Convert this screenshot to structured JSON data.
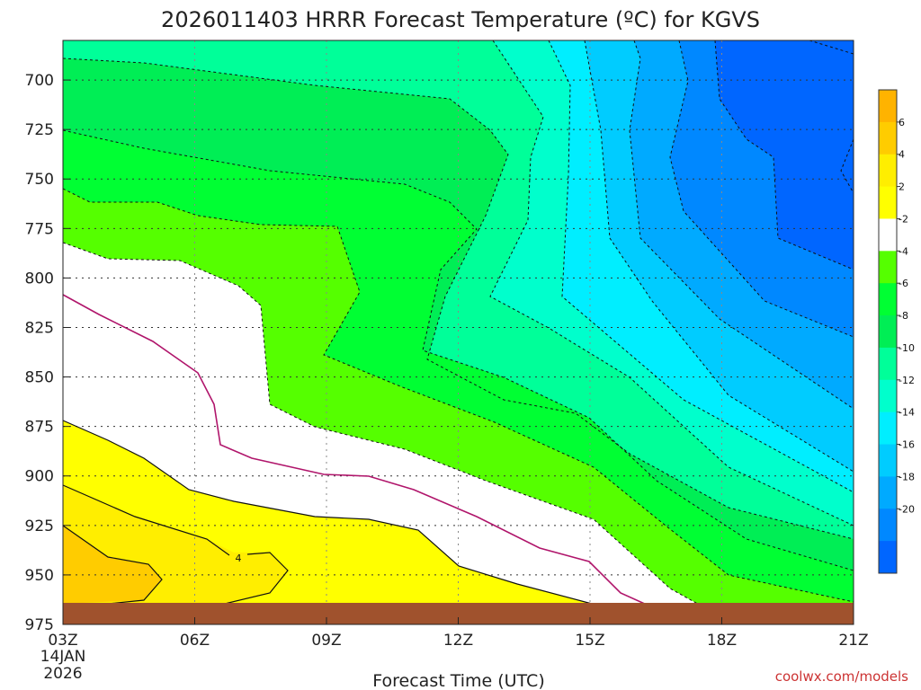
{
  "chart_data": {
    "type": "heatmap",
    "title": "2026011403 HRRR Forecast Temperature (ºC) for KGVS",
    "xlabel": "Forecast Time (UTC)",
    "x_ticks": [
      "03Z",
      "06Z",
      "09Z",
      "12Z",
      "15Z",
      "18Z",
      "21Z"
    ],
    "x_start_date": [
      "14JAN",
      "2026"
    ],
    "y_ticks": [
      700,
      725,
      750,
      775,
      800,
      825,
      850,
      875,
      900,
      925,
      950,
      975
    ],
    "ylim": [
      975,
      680
    ],
    "grid": true,
    "colorbar": {
      "levels": [
        6,
        4,
        2,
        -2,
        -4,
        -6,
        -8,
        -10,
        -12,
        -14,
        -16,
        -18,
        -20
      ],
      "colors": [
        "#ffb300",
        "#ffcc00",
        "#ffee00",
        "#ffff00",
        "#ffffff",
        "#55ff00",
        "#00ff33",
        "#00ee55",
        "#00ff99",
        "#00ffcc",
        "#00eeff",
        "#00ccff",
        "#00aaff",
        "#0088ff",
        "#0066ff"
      ]
    },
    "contour_labels": [
      "4"
    ],
    "terrain_color": "#a0522d"
  },
  "credit": "coolwx.com/models"
}
